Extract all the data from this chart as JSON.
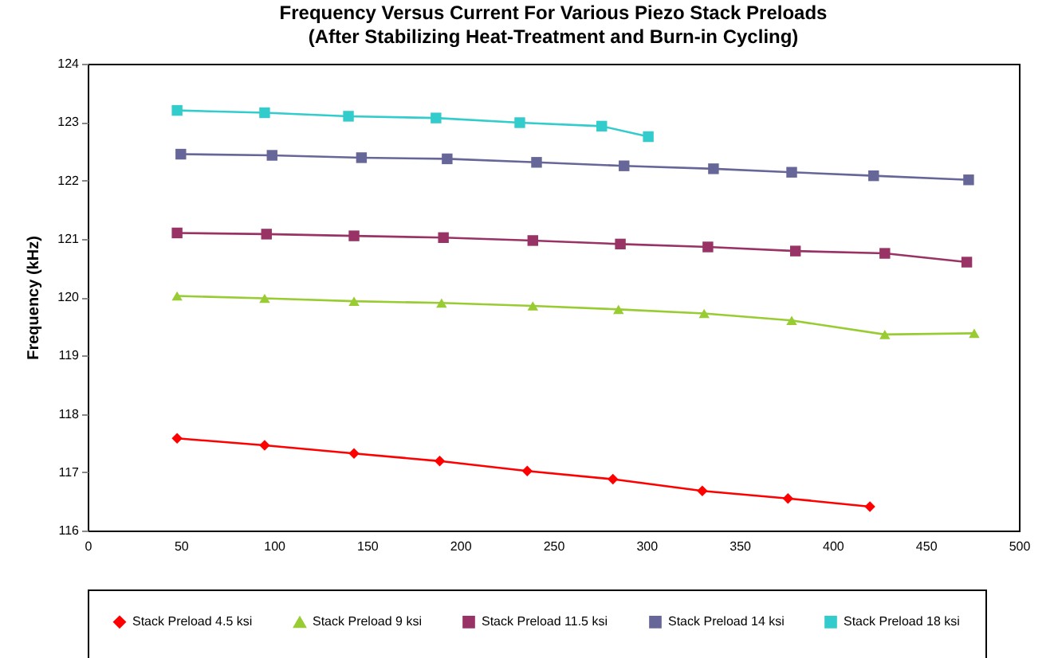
{
  "chart_data": {
    "type": "line",
    "title": "Frequency Versus Current For Various Piezo Stack Preloads",
    "subtitle": "(After Stabilizing Heat-Treatment and Burn-in Cycling)",
    "ylabel": "Frequency (kHz)",
    "xlim": [
      0,
      500
    ],
    "xticks": [
      0,
      50,
      100,
      150,
      200,
      250,
      300,
      350,
      400,
      450,
      500
    ],
    "ylim": [
      116,
      124
    ],
    "yticks": [
      116,
      117,
      118,
      119,
      120,
      121,
      122,
      123,
      124
    ],
    "grid": false,
    "legend": "bottom",
    "series": [
      {
        "name": "Stack Preload 4.5 ksi",
        "color": "#ff0000",
        "marker": "diamond",
        "x": [
          48,
          95,
          143,
          189,
          236,
          282,
          330,
          376,
          420
        ],
        "values": [
          117.58,
          117.46,
          117.32,
          117.19,
          117.02,
          116.88,
          116.68,
          116.55,
          116.41
        ]
      },
      {
        "name": "Stack Preload 9 ksi",
        "color": "#99cc33",
        "marker": "triangle",
        "x": [
          48,
          95,
          143,
          190,
          239,
          285,
          331,
          378,
          428,
          476
        ],
        "values": [
          120.02,
          119.98,
          119.93,
          119.9,
          119.85,
          119.79,
          119.72,
          119.6,
          119.36,
          119.38
        ]
      },
      {
        "name": "Stack Preload 11.5 ksi",
        "color": "#993366",
        "marker": "square",
        "x": [
          48,
          96,
          143,
          191,
          239,
          286,
          333,
          380,
          428,
          472
        ],
        "values": [
          121.1,
          121.08,
          121.05,
          121.02,
          120.97,
          120.91,
          120.86,
          120.79,
          120.75,
          120.6
        ]
      },
      {
        "name": "Stack Preload 14 ksi",
        "color": "#666699",
        "marker": "square",
        "x": [
          50,
          99,
          147,
          193,
          241,
          288,
          336,
          378,
          422,
          473
        ],
        "values": [
          122.45,
          122.43,
          122.39,
          122.37,
          122.31,
          122.25,
          122.2,
          122.14,
          122.08,
          122.01
        ]
      },
      {
        "name": "Stack Preload 18 ksi",
        "color": "#33cccc",
        "marker": "square",
        "x": [
          48,
          95,
          140,
          187,
          232,
          276,
          301
        ],
        "values": [
          123.2,
          123.16,
          123.1,
          123.07,
          122.99,
          122.93,
          122.75
        ]
      }
    ]
  }
}
